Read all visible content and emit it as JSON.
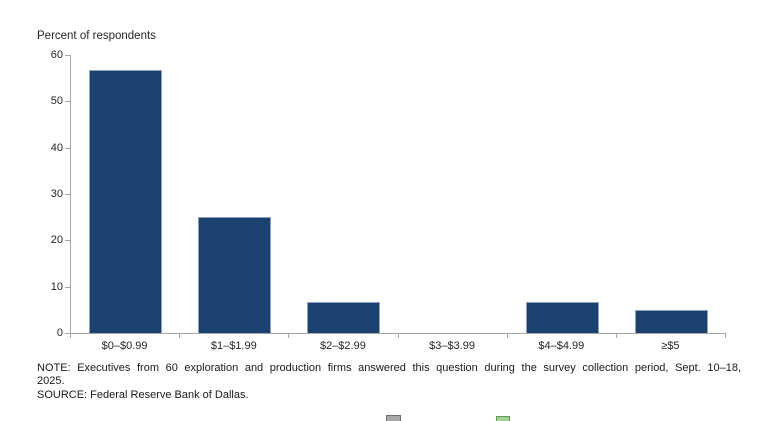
{
  "chart_data": {
    "type": "bar",
    "title": "Percent of respondents",
    "categories": [
      "$0–$0.99",
      "$1–$1.99",
      "$2–$2.99",
      "$3–$3.99",
      "$4–$4.99",
      "≥$5"
    ],
    "values": [
      56.7,
      25,
      6.7,
      0,
      6.7,
      5
    ],
    "xlabel": "",
    "ylabel": "Percent of respondents",
    "ylim": [
      0,
      60
    ],
    "yticks": [
      0,
      10,
      20,
      30,
      40,
      50,
      60
    ],
    "grid": false,
    "legend_position": "none",
    "bar_color": "#1b4170",
    "axis_color": "#a6a6a6"
  },
  "note": {
    "line1": "NOTE: Executives from 60 exploration and production firms answered this question during the survey collection period, Sept. 10–18,",
    "line2": "2025.",
    "source": "SOURCE: Federal Reserve Bank of Dallas."
  },
  "legend_fragments": {
    "gray": {
      "fill": "#a8a8a8",
      "border": "#6e6e6e"
    },
    "green": {
      "fill": "#a5d096",
      "border": "#5f9e4f"
    }
  }
}
